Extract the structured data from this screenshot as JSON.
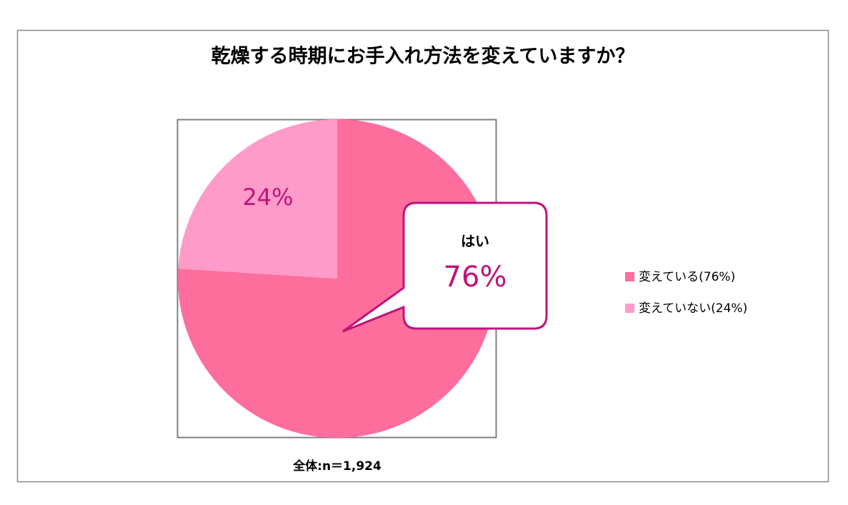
{
  "chart_data": {
    "type": "pie",
    "title": "乾燥する時期にお手入れ方法を変えていますか？",
    "categories": [
      "変えている(76%)",
      "変えていない(24%)"
    ],
    "values": [
      76,
      24
    ],
    "value_labels": [
      "76%",
      "24%"
    ],
    "colors": [
      "#fd6e9c",
      "#fe9bc9"
    ],
    "annotation": "はい",
    "note": "全体:n＝1,924"
  }
}
